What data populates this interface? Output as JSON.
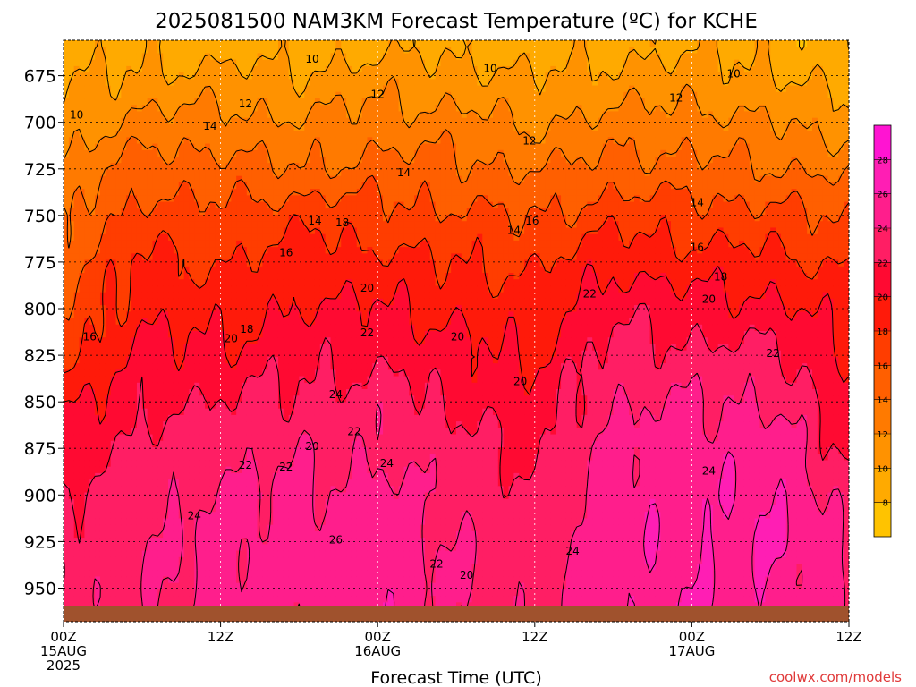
{
  "chart_data": {
    "type": "heatmap",
    "title": "2025081500 NAM3KM Forecast Temperature (ºC) for KCHE",
    "xlabel": "Forecast Time (UTC)",
    "ylabel": "",
    "credit": "coolwx.com/models",
    "x_ticks": [
      {
        "hour": 0,
        "lines": [
          "00Z",
          "15AUG",
          "2025"
        ]
      },
      {
        "hour": 12,
        "lines": [
          "12Z"
        ]
      },
      {
        "hour": 24,
        "lines": [
          "00Z",
          "16AUG"
        ]
      },
      {
        "hour": 36,
        "lines": [
          "12Z"
        ]
      },
      {
        "hour": 48,
        "lines": [
          "00Z",
          "17AUG"
        ]
      },
      {
        "hour": 60,
        "lines": [
          "12Z"
        ]
      }
    ],
    "xlim": [
      0,
      60
    ],
    "y_ticks": [
      675,
      700,
      725,
      750,
      775,
      800,
      825,
      850,
      875,
      900,
      925,
      950
    ],
    "ylim": [
      656,
      968
    ],
    "y_axis_inverted": true,
    "colorbar": {
      "ticks": [
        8,
        10,
        12,
        14,
        16,
        18,
        20,
        22,
        24,
        26,
        28
      ],
      "bands": [
        {
          "min": 6,
          "max": 8,
          "color": "#FFC300"
        },
        {
          "min": 8,
          "max": 10,
          "color": "#FFAA00"
        },
        {
          "min": 10,
          "max": 12,
          "color": "#FF9200"
        },
        {
          "min": 12,
          "max": 14,
          "color": "#FF7A00"
        },
        {
          "min": 14,
          "max": 16,
          "color": "#FF5F00"
        },
        {
          "min": 16,
          "max": 18,
          "color": "#FF3D00"
        },
        {
          "min": 18,
          "max": 20,
          "color": "#FF1A0A"
        },
        {
          "min": 20,
          "max": 22,
          "color": "#FF0A32"
        },
        {
          "min": 22,
          "max": 24,
          "color": "#FF1E64"
        },
        {
          "min": 24,
          "max": 26,
          "color": "#FF1E8C"
        },
        {
          "min": 26,
          "max": 28,
          "color": "#FF1EB4"
        },
        {
          "min": 28,
          "max": 30,
          "color": "#FF14D2"
        }
      ]
    },
    "ground_color": "#A0522D",
    "contour_interval": 2,
    "temperature_profile_hours": [
      0,
      6,
      12,
      18,
      24,
      30,
      36,
      42,
      48,
      54,
      60
    ],
    "temperature_profile_pressure": [
      660,
      675,
      700,
      725,
      750,
      775,
      800,
      825,
      850,
      875,
      900,
      925,
      950
    ],
    "temperature_profile": [
      [
        9.0,
        9.5,
        10.8,
        12.4,
        13.8,
        15.0,
        16.0,
        17.2,
        19.2,
        20.8,
        21.8,
        22.5,
        22.8
      ],
      [
        9.5,
        10.3,
        12.6,
        15.0,
        16.9,
        18.5,
        19.5,
        20.5,
        21.6,
        22.5,
        23.2,
        23.6,
        23.8
      ],
      [
        9.2,
        10.5,
        12.8,
        14.8,
        16.4,
        17.8,
        19.0,
        20.4,
        22.0,
        23.4,
        24.3,
        24.6,
        24.6
      ],
      [
        9.0,
        10.2,
        12.1,
        14.0,
        17.5,
        19.0,
        20.2,
        21.4,
        22.6,
        23.6,
        24.4,
        24.8,
        25.0
      ],
      [
        9.6,
        10.9,
        12.9,
        14.8,
        16.8,
        18.6,
        20.2,
        21.6,
        22.9,
        23.8,
        24.6,
        25.1,
        25.3
      ],
      [
        9.4,
        10.6,
        12.7,
        14.6,
        16.3,
        17.9,
        19.4,
        20.8,
        21.8,
        22.7,
        23.5,
        23.9,
        24.1
      ],
      [
        9.0,
        10.0,
        11.8,
        13.8,
        15.9,
        17.6,
        18.8,
        19.8,
        20.6,
        21.7,
        22.4,
        22.9,
        23.2
      ],
      [
        9.5,
        10.6,
        12.6,
        14.8,
        17.2,
        19.6,
        21.6,
        22.8,
        23.9,
        24.6,
        25.1,
        25.4,
        25.5
      ],
      [
        9.8,
        10.8,
        12.8,
        14.6,
        16.8,
        18.8,
        20.8,
        22.6,
        24.0,
        24.8,
        25.3,
        25.6,
        25.8
      ],
      [
        9.4,
        10.3,
        12.0,
        14.2,
        16.6,
        18.6,
        20.6,
        22.4,
        24.0,
        25.3,
        26.2,
        26.1,
        25.4
      ],
      [
        8.2,
        9.0,
        11.0,
        13.4,
        15.8,
        17.6,
        18.9,
        19.9,
        20.8,
        21.6,
        22.8,
        23.6,
        24.0
      ]
    ],
    "contour_labels": [
      {
        "text": "10",
        "hour": 19.0,
        "p": 666
      },
      {
        "text": "10",
        "hour": 32.6,
        "p": 671
      },
      {
        "text": "10",
        "hour": 51.2,
        "p": 674
      },
      {
        "text": "10",
        "hour": 1.0,
        "p": 696
      },
      {
        "text": "12",
        "hour": 13.9,
        "p": 690
      },
      {
        "text": "12",
        "hour": 24.0,
        "p": 685
      },
      {
        "text": "12",
        "hour": 46.8,
        "p": 687
      },
      {
        "text": "12",
        "hour": 35.6,
        "p": 710
      },
      {
        "text": "14",
        "hour": 11.2,
        "p": 702
      },
      {
        "text": "14",
        "hour": 26.0,
        "p": 727
      },
      {
        "text": "14",
        "hour": 48.4,
        "p": 743
      },
      {
        "text": "14",
        "hour": 19.2,
        "p": 753
      },
      {
        "text": "14",
        "hour": 34.4,
        "p": 758
      },
      {
        "text": "16",
        "hour": 35.8,
        "p": 753
      },
      {
        "text": "16",
        "hour": 48.4,
        "p": 767
      },
      {
        "text": "16",
        "hour": 17.0,
        "p": 770
      },
      {
        "text": "16",
        "hour": 2.0,
        "p": 815
      },
      {
        "text": "18",
        "hour": 21.3,
        "p": 754
      },
      {
        "text": "18",
        "hour": 50.2,
        "p": 783
      },
      {
        "text": "18",
        "hour": 14.0,
        "p": 811
      },
      {
        "text": "20",
        "hour": 23.2,
        "p": 789
      },
      {
        "text": "20",
        "hour": 49.3,
        "p": 795
      },
      {
        "text": "20",
        "hour": 12.8,
        "p": 816
      },
      {
        "text": "20",
        "hour": 30.1,
        "p": 815
      },
      {
        "text": "20",
        "hour": 34.9,
        "p": 839
      },
      {
        "text": "20",
        "hour": 19.0,
        "p": 874
      },
      {
        "text": "20",
        "hour": 30.8,
        "p": 943
      },
      {
        "text": "22",
        "hour": 40.2,
        "p": 792
      },
      {
        "text": "22",
        "hour": 23.2,
        "p": 813
      },
      {
        "text": "22",
        "hour": 54.2,
        "p": 824
      },
      {
        "text": "22",
        "hour": 22.2,
        "p": 866
      },
      {
        "text": "22",
        "hour": 13.9,
        "p": 884
      },
      {
        "text": "22",
        "hour": 17.0,
        "p": 885
      },
      {
        "text": "22",
        "hour": 28.5,
        "p": 937
      },
      {
        "text": "24",
        "hour": 20.8,
        "p": 846
      },
      {
        "text": "24",
        "hour": 24.7,
        "p": 883
      },
      {
        "text": "24",
        "hour": 49.3,
        "p": 887
      },
      {
        "text": "24",
        "hour": 10.0,
        "p": 911
      },
      {
        "text": "24",
        "hour": 38.9,
        "p": 930
      },
      {
        "text": "26",
        "hour": 20.8,
        "p": 924
      }
    ],
    "grid": true,
    "legend": "right (colorbar)"
  }
}
